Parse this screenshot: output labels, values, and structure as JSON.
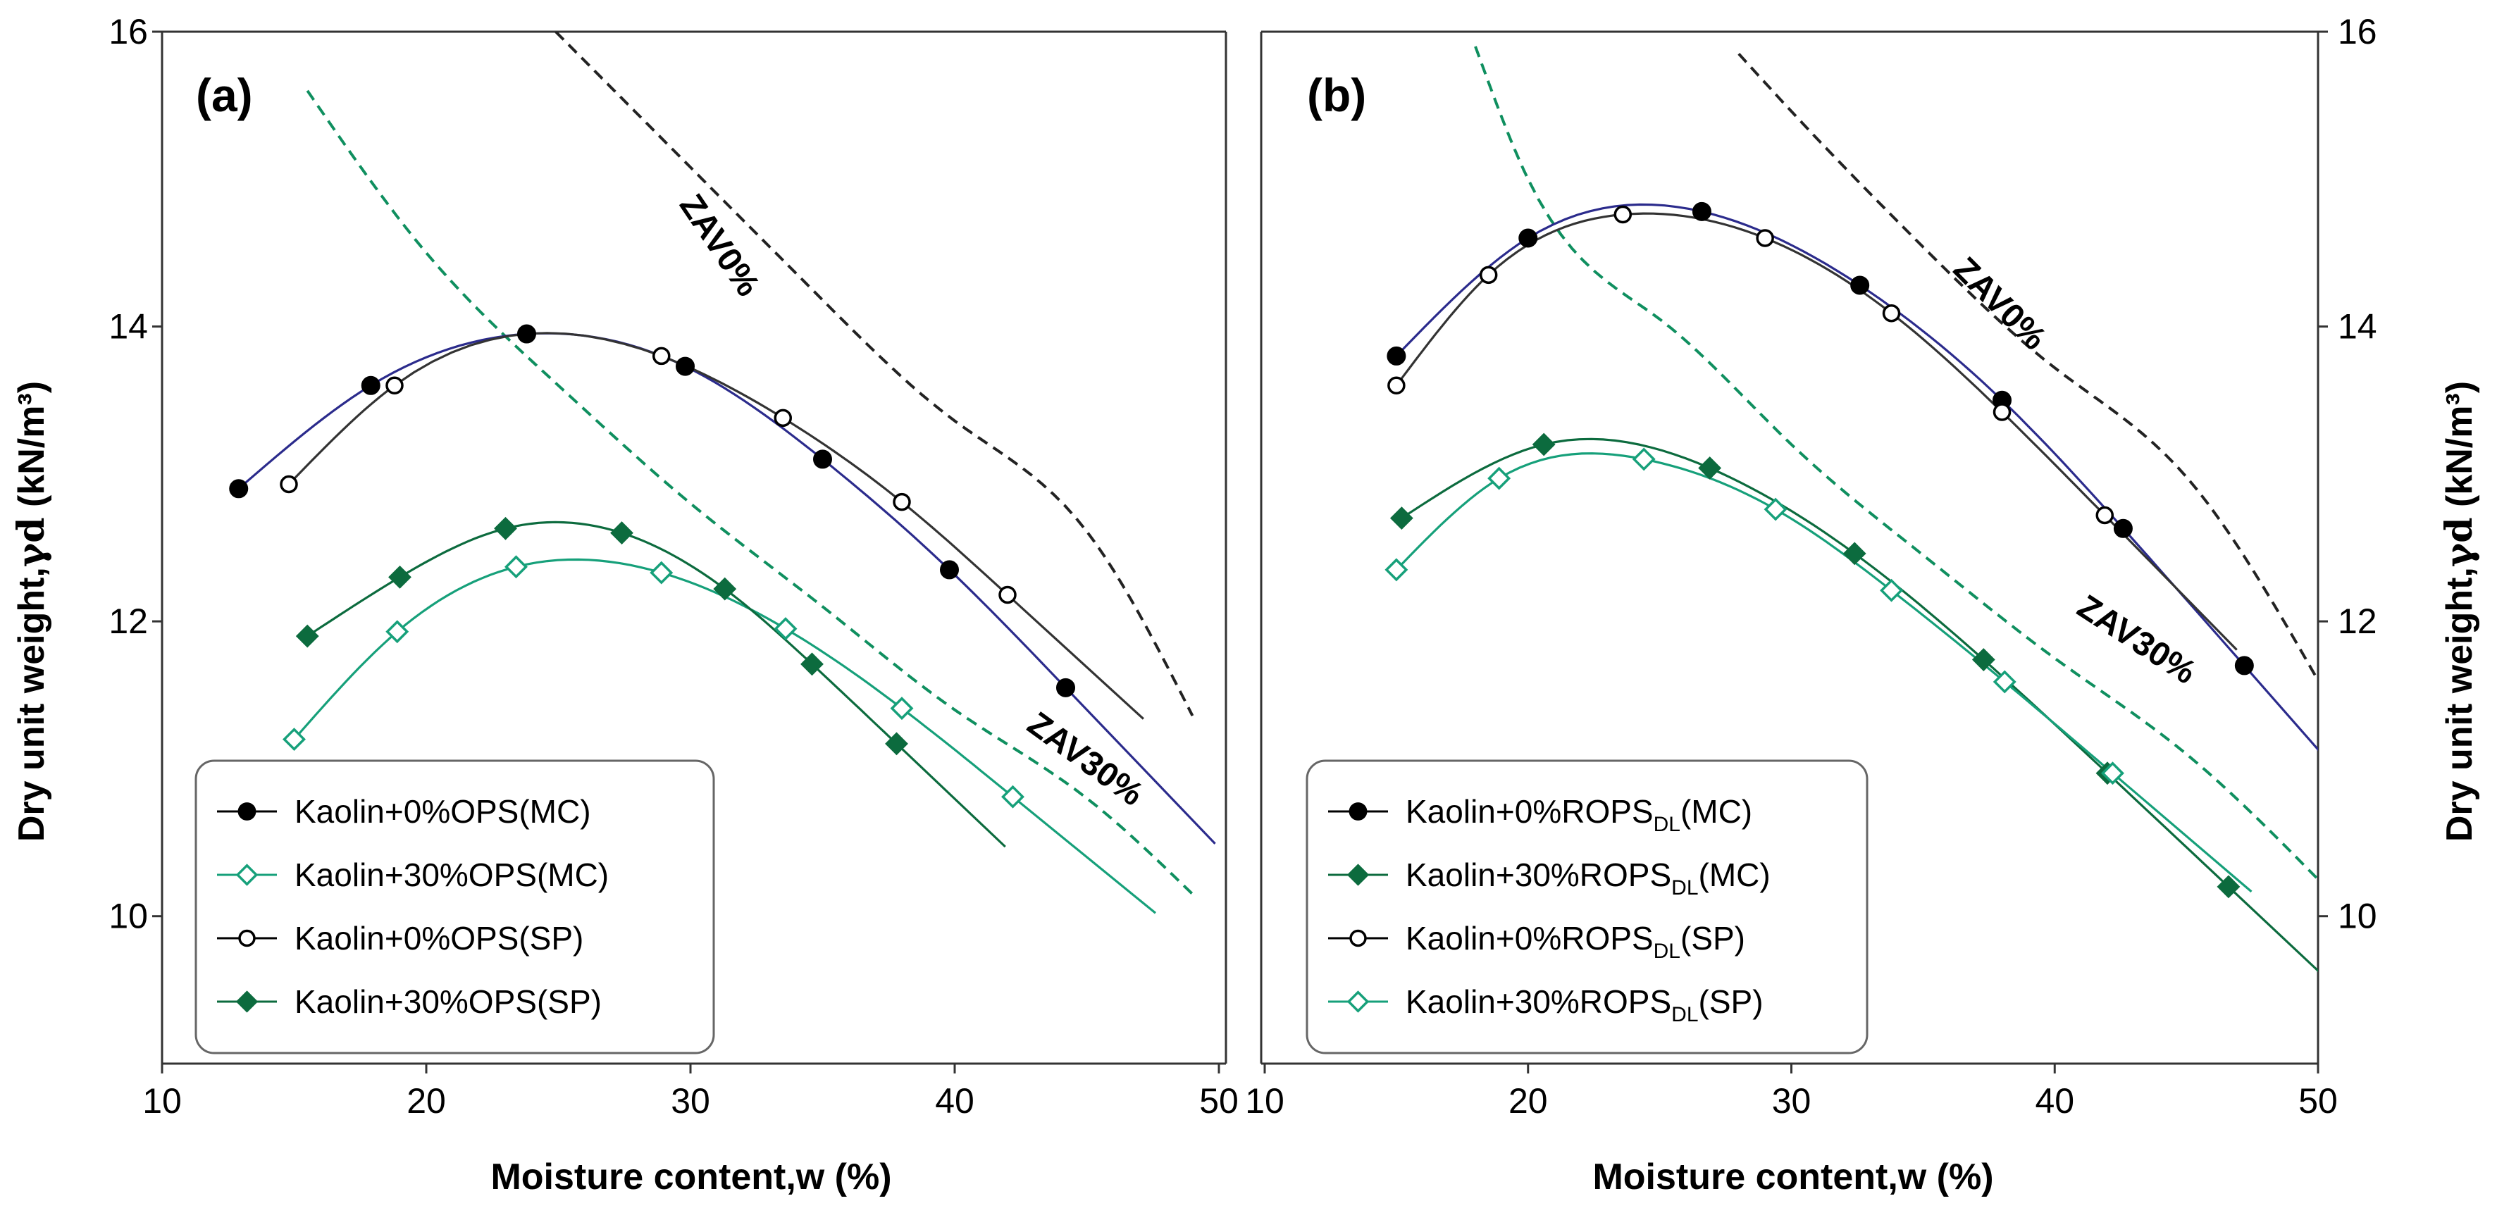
{
  "colors": {
    "black": "#000000",
    "green": "#00704a",
    "green_dark": "#0c6b3e",
    "green_light": "#16a07a",
    "navy": "#2b2b8c",
    "zav_black": "#222222",
    "zav_green": "#0f8f5f"
  },
  "chart_data": [
    {
      "type": "line",
      "panel_tag": "(a)",
      "xlabel": "Moisture content,w (%)",
      "ylabel": "Dry unit weight,",
      "ylabel_symbol": "γd",
      "ylabel_unit": " (kN/m³)",
      "xlim": [
        10,
        50
      ],
      "ylim": [
        9,
        16
      ],
      "xticks": [
        10,
        20,
        30,
        40,
        50
      ],
      "yticks": [
        10,
        12,
        14,
        16
      ],
      "ylabel_side": "left",
      "series": [
        {
          "label": "Kaolin+0%OPS(MC)",
          "marker": "circle-filled",
          "color": "#000000",
          "x": [
            12.9,
            17.9,
            23.8,
            29.8,
            35.0,
            39.8,
            44.2
          ],
          "y": [
            12.9,
            13.6,
            13.95,
            13.73,
            13.1,
            12.35,
            11.55
          ]
        },
        {
          "label": "Kaolin+30%OPS(MC)",
          "marker": "diamond-open",
          "color": "#16a07a",
          "x": [
            15.0,
            18.9,
            23.4,
            28.9,
            33.6,
            38.0,
            42.2
          ],
          "y": [
            11.2,
            11.93,
            12.37,
            12.33,
            11.95,
            11.41,
            10.81
          ]
        },
        {
          "label": "Kaolin+0%OPS(SP)",
          "marker": "circle-open",
          "color": "#000000",
          "x": [
            14.8,
            18.8,
            28.9,
            33.5,
            38.0,
            42.0
          ],
          "y": [
            12.93,
            13.6,
            13.8,
            13.38,
            12.81,
            12.18
          ]
        },
        {
          "label": "Kaolin+30%OPS(SP)",
          "marker": "diamond-filled",
          "color": "#0c6b3e",
          "x": [
            15.5,
            19.0,
            23.0,
            27.4,
            31.3,
            34.6,
            37.8
          ],
          "y": [
            11.9,
            12.3,
            12.63,
            12.6,
            12.22,
            11.71,
            11.17
          ]
        }
      ],
      "zav": [
        {
          "label": "ZAV0%",
          "color": "#222222",
          "x": [
            24.9,
            30,
            35,
            40,
            45,
            49.0
          ],
          "y": [
            16.0,
            15.08,
            14.18,
            13.36,
            12.61,
            11.36
          ]
        },
        {
          "label": "ZAV30%",
          "color": "#0f8f5f",
          "x": [
            15.5,
            20,
            25,
            30,
            35,
            40,
            45,
            49.0
          ],
          "y": [
            15.6,
            14.5,
            13.6,
            12.8,
            12.1,
            11.4,
            10.8,
            10.15
          ]
        }
      ],
      "legend": {
        "placement": "bottom-left"
      }
    },
    {
      "type": "line",
      "panel_tag": "(b)",
      "xlabel": "Moisture content,w (%)",
      "ylabel": "Dry unit weight,",
      "ylabel_symbol": "γd",
      "ylabel_unit": " (kN/m³)",
      "xlim": [
        10,
        50
      ],
      "ylim": [
        9,
        16
      ],
      "xticks": [
        10,
        20,
        30,
        40,
        50
      ],
      "yticks": [
        10,
        12,
        14,
        16
      ],
      "ylabel_side": "right",
      "series": [
        {
          "label": "Kaolin+0%ROPS",
          "label_sub": "DL",
          "label_tail": "(MC)",
          "marker": "circle-filled",
          "color": "#000000",
          "x": [
            15.0,
            20.0,
            26.6,
            32.6,
            38.0,
            42.6,
            47.2
          ],
          "y": [
            13.8,
            14.6,
            14.78,
            14.28,
            13.5,
            12.63,
            11.7
          ]
        },
        {
          "label": "Kaolin+30%ROPS",
          "label_sub": "DL",
          "label_tail": "(MC)",
          "marker": "diamond-filled",
          "color": "#0c6b3e",
          "x": [
            15.2,
            20.6,
            26.9,
            32.4,
            37.3,
            42.0,
            46.6
          ],
          "y": [
            12.7,
            13.2,
            13.04,
            12.46,
            11.74,
            10.97,
            10.2
          ]
        },
        {
          "label": "Kaolin+0%ROPS",
          "label_sub": "DL",
          "label_tail": "(SP)",
          "marker": "circle-open",
          "color": "#000000",
          "x": [
            15.0,
            18.5,
            23.6,
            29.0,
            33.8,
            38.0,
            41.9
          ],
          "y": [
            13.6,
            14.35,
            14.76,
            14.6,
            14.09,
            13.42,
            12.72
          ]
        },
        {
          "label": "Kaolin+30%ROPS",
          "label_sub": "DL",
          "label_tail": "(SP)",
          "marker": "diamond-open",
          "color": "#16a07a",
          "x": [
            15.0,
            18.9,
            24.4,
            29.4,
            33.8,
            38.1,
            42.2
          ],
          "y": [
            12.35,
            12.97,
            13.1,
            12.76,
            12.21,
            11.59,
            10.97
          ]
        }
      ],
      "zav": [
        {
          "label": "ZAV0%",
          "color": "#222222",
          "x": [
            28.0,
            30,
            35,
            40,
            45,
            50
          ],
          "y": [
            15.85,
            15.46,
            14.54,
            13.72,
            12.98,
            11.6
          ]
        },
        {
          "label": "ZAV30%",
          "color": "#0f8f5f",
          "x": [
            18.0,
            20,
            25,
            30,
            35,
            40,
            45,
            50
          ],
          "y": [
            15.9,
            15.0,
            14.05,
            13.2,
            12.45,
            11.75,
            11.1,
            10.25
          ]
        }
      ],
      "legend": {
        "placement": "bottom-left"
      }
    }
  ]
}
